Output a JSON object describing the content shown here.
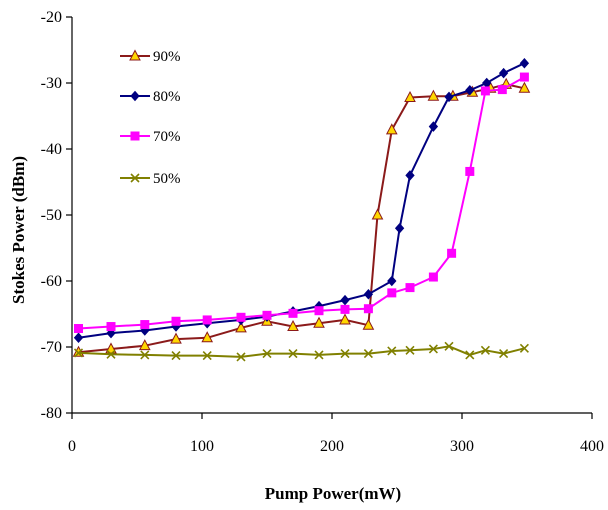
{
  "chart_data": {
    "type": "line",
    "xlabel": "Pump Power(mW)",
    "ylabel": "Stokes Power (dBm)",
    "xlim": [
      0,
      400
    ],
    "ylim": [
      -80,
      -20
    ],
    "x_ticks": [
      "0",
      "100",
      "200",
      "300",
      "400"
    ],
    "y_ticks": [
      "-80",
      "-70",
      "-60",
      "-50",
      "-40",
      "-30",
      "-20"
    ],
    "x_tick_values": [
      0,
      100,
      200,
      300,
      400
    ],
    "y_tick_values": [
      -80,
      -70,
      -60,
      -50,
      -40,
      -30,
      -20
    ],
    "grid": false,
    "legend_position": "top-left inside",
    "series": [
      {
        "name": "90%",
        "color": "#8b1a1a",
        "marker": "triangle",
        "marker_fill": "#ffd700",
        "points": [
          [
            5,
            -70.8
          ],
          [
            30,
            -70.3
          ],
          [
            56,
            -69.8
          ],
          [
            80,
            -68.8
          ],
          [
            104,
            -68.6
          ],
          [
            130,
            -67.1
          ],
          [
            150,
            -66.1
          ],
          [
            170,
            -66.9
          ],
          [
            190,
            -66.4
          ],
          [
            210,
            -65.9
          ],
          [
            228,
            -66.7
          ],
          [
            235,
            -50
          ],
          [
            246,
            -37.1
          ],
          [
            260,
            -32.2
          ],
          [
            278,
            -32
          ],
          [
            293,
            -32
          ],
          [
            308,
            -31.4
          ],
          [
            322,
            -30.8
          ],
          [
            334,
            -30.2
          ],
          [
            348,
            -30.8
          ]
        ]
      },
      {
        "name": "80%",
        "color": "#000080",
        "marker": "diamond",
        "marker_fill": "#000080",
        "points": [
          [
            5,
            -68.6
          ],
          [
            30,
            -67.9
          ],
          [
            56,
            -67.5
          ],
          [
            80,
            -66.9
          ],
          [
            104,
            -66.4
          ],
          [
            130,
            -65.9
          ],
          [
            150,
            -65.4
          ],
          [
            170,
            -64.6
          ],
          [
            190,
            -63.8
          ],
          [
            210,
            -62.9
          ],
          [
            228,
            -62
          ],
          [
            246,
            -60
          ],
          [
            252,
            -52
          ],
          [
            260,
            -44
          ],
          [
            278,
            -36.6
          ],
          [
            290,
            -32.1
          ],
          [
            306,
            -31.1
          ],
          [
            319,
            -30
          ],
          [
            332,
            -28.5
          ],
          [
            348,
            -27
          ]
        ]
      },
      {
        "name": "70%",
        "color": "#ff00ff",
        "marker": "square",
        "marker_fill": "#ff00ff",
        "points": [
          [
            5,
            -67.2
          ],
          [
            30,
            -66.9
          ],
          [
            56,
            -66.6
          ],
          [
            80,
            -66.1
          ],
          [
            104,
            -65.9
          ],
          [
            130,
            -65.5
          ],
          [
            150,
            -65.2
          ],
          [
            170,
            -64.9
          ],
          [
            190,
            -64.5
          ],
          [
            210,
            -64.3
          ],
          [
            228,
            -64.2
          ],
          [
            246,
            -61.8
          ],
          [
            260,
            -61
          ],
          [
            278,
            -59.4
          ],
          [
            292,
            -55.8
          ],
          [
            306,
            -43.4
          ],
          [
            318,
            -31.2
          ],
          [
            331,
            -31
          ],
          [
            348,
            -29.1
          ]
        ]
      },
      {
        "name": "50%",
        "color": "#808000",
        "marker": "x",
        "marker_fill": "#808000",
        "points": [
          [
            5,
            -70.9
          ],
          [
            30,
            -71.1
          ],
          [
            56,
            -71.2
          ],
          [
            80,
            -71.3
          ],
          [
            104,
            -71.3
          ],
          [
            130,
            -71.5
          ],
          [
            150,
            -71
          ],
          [
            170,
            -71
          ],
          [
            190,
            -71.2
          ],
          [
            210,
            -71
          ],
          [
            228,
            -71
          ],
          [
            246,
            -70.6
          ],
          [
            260,
            -70.5
          ],
          [
            278,
            -70.3
          ],
          [
            290,
            -69.9
          ],
          [
            306,
            -71.2
          ],
          [
            318,
            -70.5
          ],
          [
            332,
            -71
          ],
          [
            348,
            -70.2
          ]
        ]
      }
    ]
  }
}
